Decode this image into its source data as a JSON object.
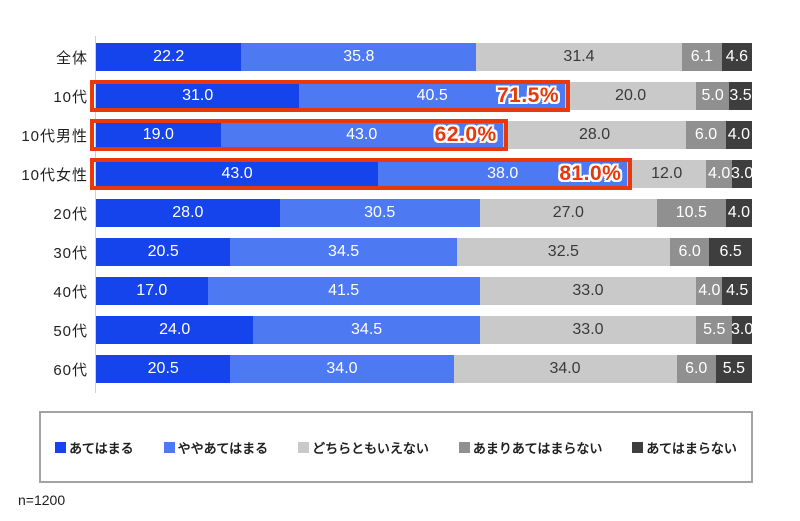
{
  "page": {
    "background": "#ffffff",
    "sample_size_label": "n=1200"
  },
  "chart_data": {
    "type": "bar",
    "orientation": "horizontal-stacked",
    "unit": "%",
    "xlim": [
      0,
      100
    ],
    "grid": false,
    "legend_position": "bottom-box",
    "categories": [
      "全体",
      "10代",
      "10代男性",
      "10代女性",
      "20代",
      "30代",
      "40代",
      "50代",
      "60代"
    ],
    "series": [
      {
        "name": "あてはまる",
        "color": "#1544ec",
        "label_color": "#ffffff",
        "values": [
          22.2,
          31.0,
          19.0,
          43.0,
          28.0,
          20.5,
          17.0,
          24.0,
          20.5
        ]
      },
      {
        "name": "ややあてはまる",
        "color": "#4d79f2",
        "label_color": "#ffffff",
        "values": [
          35.8,
          40.5,
          43.0,
          38.0,
          30.5,
          34.5,
          41.5,
          34.5,
          34.0
        ]
      },
      {
        "name": "どちらともいえない",
        "color": "#c9c9c9",
        "label_color": "#3a3a3a",
        "values": [
          31.4,
          20.0,
          28.0,
          12.0,
          27.0,
          32.5,
          33.0,
          33.0,
          34.0
        ]
      },
      {
        "name": "あまりあてはまらない",
        "color": "#909090",
        "label_color": "#ffffff",
        "values": [
          6.1,
          5.0,
          6.0,
          4.0,
          10.5,
          6.0,
          4.0,
          5.5,
          6.0
        ]
      },
      {
        "name": "あてはまらない",
        "color": "#3e3e3e",
        "label_color": "#ffffff",
        "values": [
          4.6,
          3.5,
          4.0,
          3.0,
          4.0,
          6.5,
          4.5,
          3.0,
          5.5
        ]
      }
    ],
    "highlights": [
      {
        "row_index": 1,
        "category": "10代",
        "label": "71.5%",
        "covers_series": [
          0,
          1
        ],
        "box_color": "#e8380c"
      },
      {
        "row_index": 2,
        "category": "10代男性",
        "label": "62.0%",
        "covers_series": [
          0,
          1
        ],
        "box_color": "#e8380c"
      },
      {
        "row_index": 3,
        "category": "10代女性",
        "label": "81.0%",
        "covers_series": [
          0,
          1
        ],
        "box_color": "#e8380c"
      }
    ],
    "annotations": {
      "sample_size": "n=1200"
    }
  }
}
